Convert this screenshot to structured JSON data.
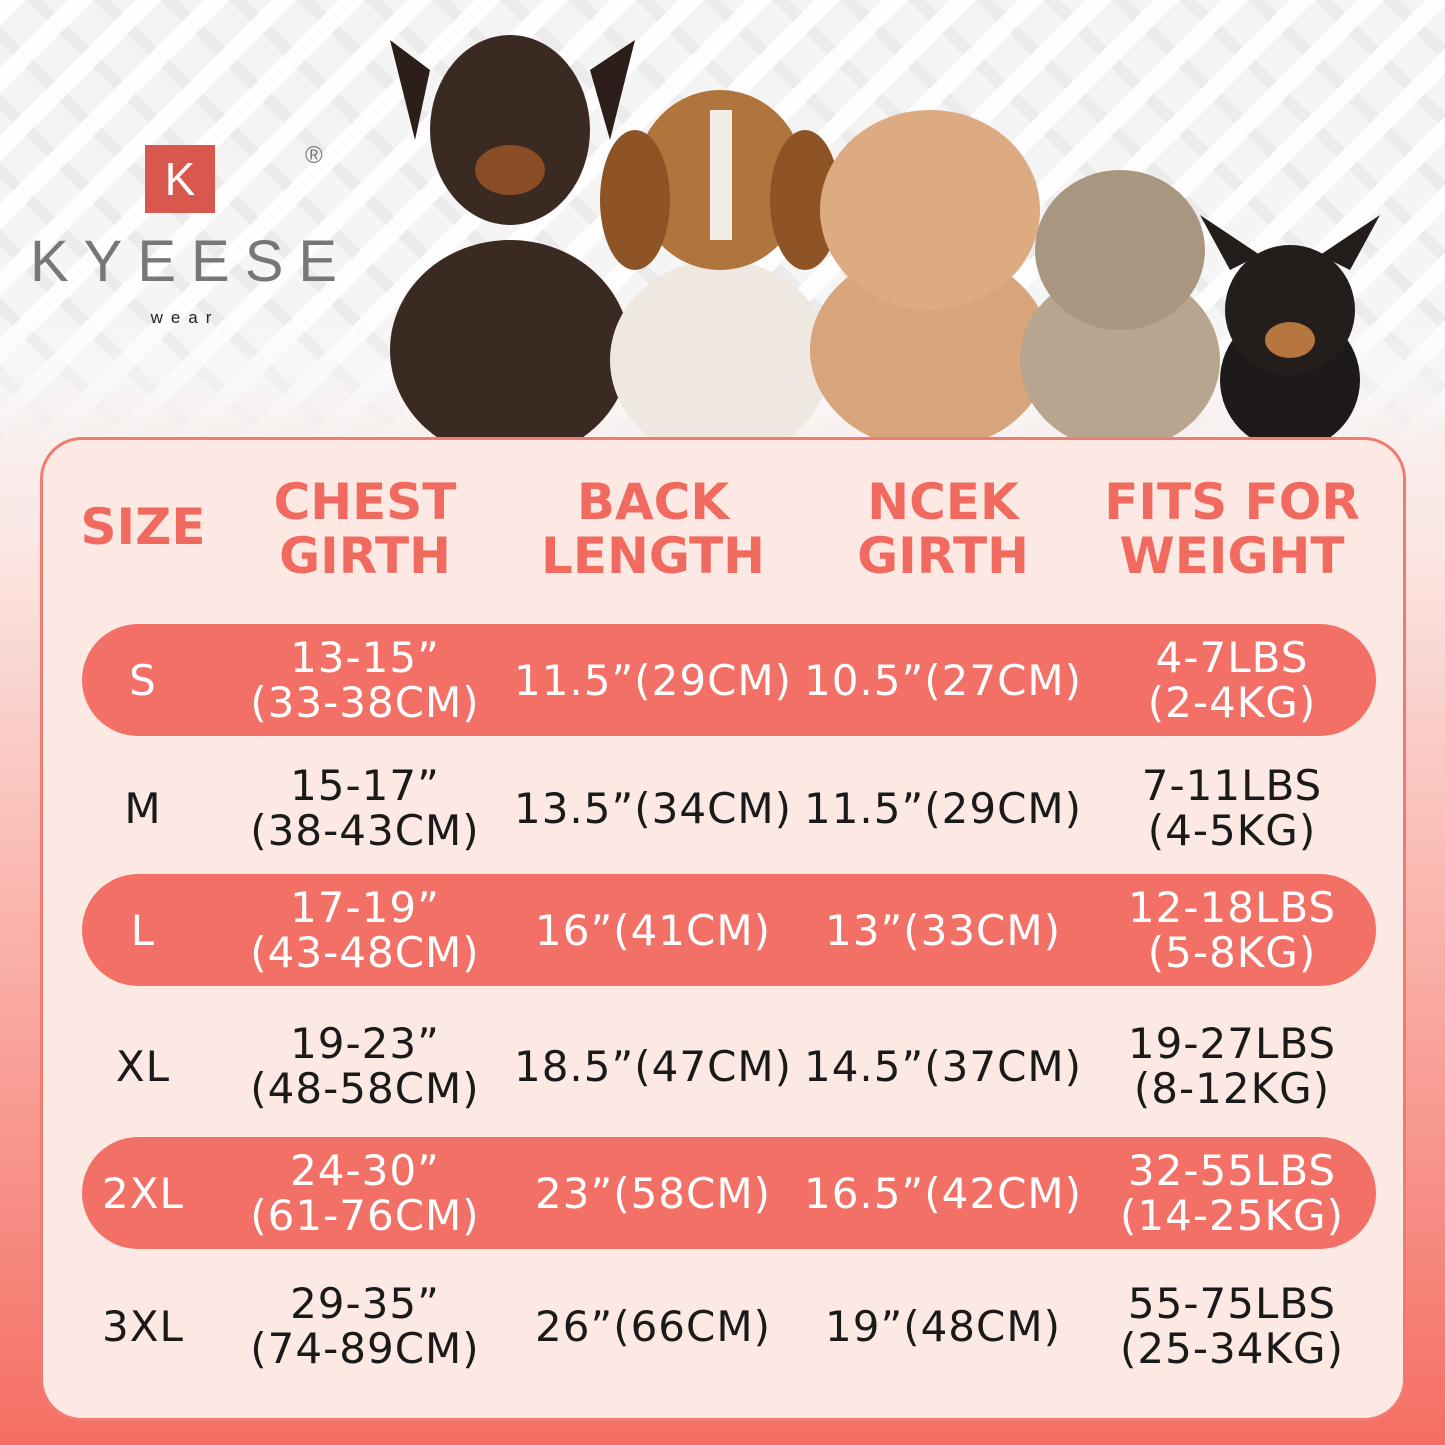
{
  "brand": {
    "logo_letter": "K",
    "name": "KYEESE",
    "sub": "wear",
    "registered": "®",
    "color": "#d9584e"
  },
  "colors": {
    "header": "#f06a60",
    "pill": "#f37066",
    "panel": "#fce9e3"
  },
  "headers": [
    "SIZE",
    "CHEST\nGIRTH",
    "BACK\nLENGTH",
    "NCEK\nGIRTH",
    "FITS FOR\nWEIGHT"
  ],
  "rows": [
    {
      "size": "S",
      "chest": "13-15”\n(33-38CM)",
      "back": "11.5”(29CM)",
      "neck": "10.5”(27CM)",
      "weight": "4-7LBS\n(2-4KG)"
    },
    {
      "size": "M",
      "chest": "15-17”\n(38-43CM)",
      "back": "13.5”(34CM)",
      "neck": "11.5”(29CM)",
      "weight": "7-11LBS\n(4-5KG)"
    },
    {
      "size": "L",
      "chest": "17-19”\n(43-48CM)",
      "back": "16”(41CM)",
      "neck": "13”(33CM)",
      "weight": "12-18LBS\n(5-8KG)"
    },
    {
      "size": "XL",
      "chest": "19-23”\n(48-58CM)",
      "back": "18.5”(47CM)",
      "neck": "14.5”(37CM)",
      "weight": "19-27LBS\n(8-12KG)"
    },
    {
      "size": "2XL",
      "chest": "24-30”\n(61-76CM)",
      "back": "23”(58CM)",
      "neck": "16.5”(42CM)",
      "weight": "32-55LBS\n(14-25KG)"
    },
    {
      "size": "3XL",
      "chest": "29-35”\n(74-89CM)",
      "back": "26”(66CM)",
      "neck": "19”(48CM)",
      "weight": "55-75LBS\n(25-34KG)"
    }
  ]
}
